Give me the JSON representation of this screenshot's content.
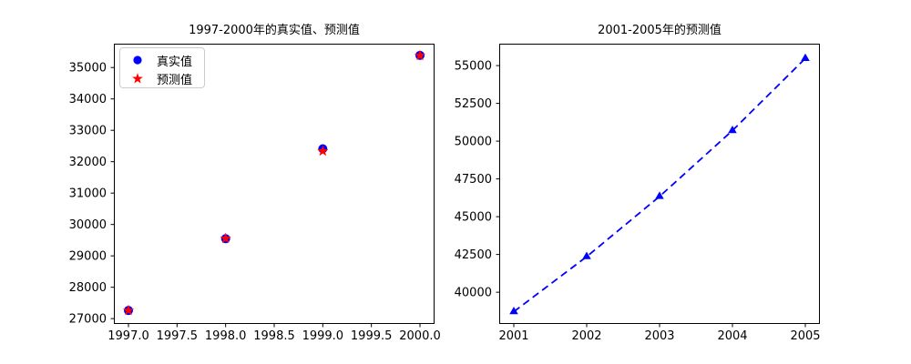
{
  "chart_data": [
    {
      "type": "scatter",
      "title": "1997-2000年的真实值、预测值",
      "x": [
        1997,
        1998,
        1999,
        2000
      ],
      "series": [
        {
          "name": "真实值",
          "marker": "circle",
          "color": "#0000ff",
          "linestyle": "none",
          "values": [
            27260,
            29547,
            32411,
            35388
          ]
        },
        {
          "name": "预测值",
          "marker": "star",
          "color": "#ff0000",
          "linestyle": "none",
          "values": [
            27260,
            29553,
            32337,
            35381
          ]
        }
      ],
      "xlim": [
        1996.85,
        2000.15
      ],
      "ylim": [
        26830,
        35760
      ],
      "xticks": [
        1997.0,
        1997.5,
        1998.0,
        1998.5,
        1999.0,
        1999.5,
        2000.0
      ],
      "xtick_labels": [
        "1997.0",
        "1997.5",
        "1998.0",
        "1998.5",
        "1999.0",
        "1999.5",
        "2000.0"
      ],
      "yticks": [
        27000,
        28000,
        29000,
        30000,
        31000,
        32000,
        33000,
        34000,
        35000
      ],
      "ytick_labels": [
        "27000",
        "28000",
        "29000",
        "30000",
        "31000",
        "32000",
        "33000",
        "34000",
        "35000"
      ],
      "grid": false,
      "legend_position": "upper left"
    },
    {
      "type": "line",
      "title": "2001-2005年的预测值",
      "x": [
        2001,
        2002,
        2003,
        2004,
        2005
      ],
      "series": [
        {
          "name": "预测值",
          "marker": "triangle",
          "color": "#0000ff",
          "linestyle": "dashed",
          "values": [
            38712,
            42355,
            46341,
            50702,
            55473
          ]
        }
      ],
      "xlim": [
        2000.8,
        2005.2
      ],
      "ylim": [
        37900,
        56450
      ],
      "xticks": [
        2001,
        2002,
        2003,
        2004,
        2005
      ],
      "xtick_labels": [
        "2001",
        "2002",
        "2003",
        "2004",
        "2005"
      ],
      "yticks": [
        40000,
        42500,
        45000,
        47500,
        50000,
        52500,
        55000
      ],
      "ytick_labels": [
        "40000",
        "42500",
        "45000",
        "47500",
        "50000",
        "52500",
        "55000"
      ],
      "grid": false,
      "legend_position": "none"
    }
  ],
  "colors": {
    "actual_marker": "#0000ff",
    "predicted_marker": "#ff0000",
    "forecast_line": "#0000ff",
    "axis": "#000000",
    "legend_border": "#cccccc"
  }
}
